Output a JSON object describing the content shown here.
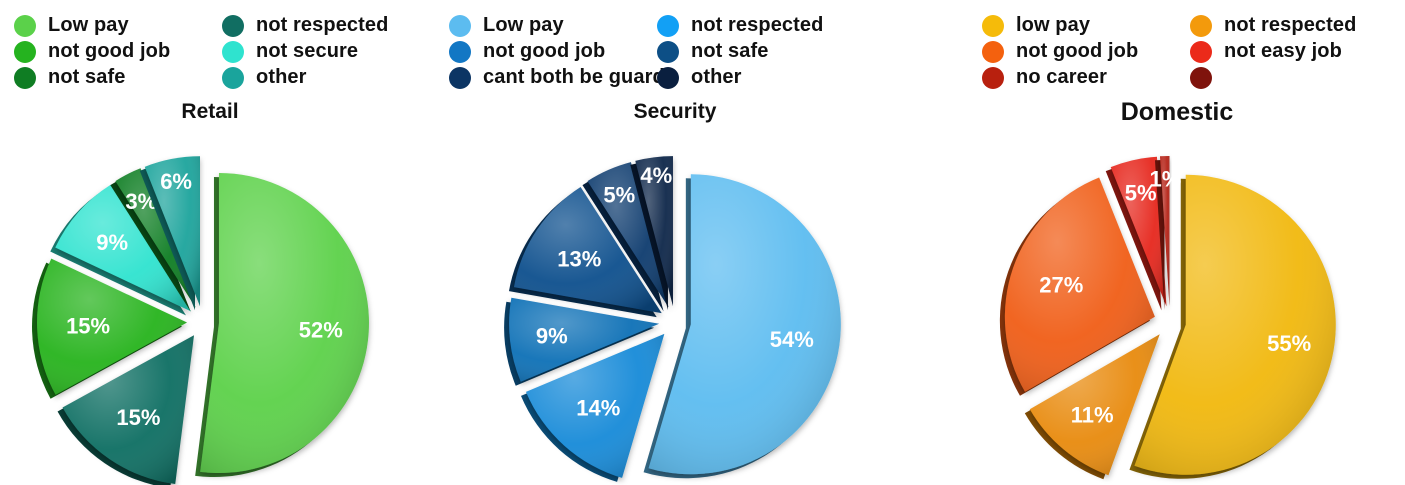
{
  "chart_data": [
    {
      "type": "pie",
      "title": "Retail",
      "slices": [
        {
          "label": "Low pay",
          "value": 52,
          "display": "52%",
          "color": "#5bd14a"
        },
        {
          "label": "not respected",
          "value": 15,
          "display": "15%",
          "color": "#116e62"
        },
        {
          "label": "not good job",
          "value": 15,
          "display": "15%",
          "color": "#25b31f"
        },
        {
          "label": "not secure",
          "value": 9,
          "display": "9%",
          "color": "#2fe3cf"
        },
        {
          "label": "not safe",
          "value": 3,
          "display": "3%",
          "color": "#0f7d23"
        },
        {
          "label": "other",
          "value": 6,
          "display": "6%",
          "color": "#1aa49c"
        }
      ]
    },
    {
      "type": "pie",
      "title": "Security",
      "slices": [
        {
          "label": "Low pay",
          "value": 54,
          "display": "54%",
          "color": "#5cbcf0"
        },
        {
          "label": "not respected",
          "value": 14,
          "display": "14%",
          "color": "#128ad8"
        },
        {
          "label": "not good job",
          "value": 9,
          "display": "9%",
          "color": "#0f70b6"
        },
        {
          "label": "not safe",
          "value": 13,
          "display": "13%",
          "color": "#0d508d"
        },
        {
          "label": "cant both be guards",
          "value": 5,
          "display": "5%",
          "color": "#0a3a6e"
        },
        {
          "label": "other",
          "value": 4,
          "display": "4%",
          "color": "#0a2549"
        }
      ]
    },
    {
      "type": "pie",
      "title": "Domestic",
      "slices": [
        {
          "label": "low pay",
          "value": 55,
          "display": "55%",
          "color": "#f1b80c"
        },
        {
          "label": "not respected",
          "value": 11,
          "display": "11%",
          "color": "#e88a08"
        },
        {
          "label": "not good job",
          "value": 27,
          "display": "27%",
          "color": "#f05d14"
        },
        {
          "label": "not easy job",
          "value": 5,
          "display": "5%",
          "color": "#e6281c"
        },
        {
          "label": "no career",
          "value": 1,
          "display": "1%",
          "color": "#b52012"
        },
        {
          "label": "",
          "value": 0,
          "display": "",
          "color": "#8a160e"
        }
      ]
    }
  ],
  "legends": [
    {
      "items": [
        {
          "label": "Low pay",
          "color": "#5bd14a"
        },
        {
          "label": "not respected",
          "color": "#116e62"
        },
        {
          "label": "not good job",
          "color": "#25b31f"
        },
        {
          "label": "not secure",
          "color": "#2fe3cf"
        },
        {
          "label": "not safe",
          "color": "#0f7d23"
        },
        {
          "label": "other",
          "color": "#1aa49c"
        }
      ]
    },
    {
      "items": [
        {
          "label": "Low pay",
          "color": "#5cbcf0"
        },
        {
          "label": "not respected",
          "color": "#12a0f5"
        },
        {
          "label": "not good job",
          "color": "#1277c4"
        },
        {
          "label": "not safe",
          "color": "#0d4f86"
        },
        {
          "label": "cant both be guards",
          "color": "#0c3564"
        },
        {
          "label": "other",
          "color": "#0a1f3f"
        }
      ]
    },
    {
      "items": [
        {
          "label": "low pay",
          "color": "#f5bb0a"
        },
        {
          "label": "not respected",
          "color": "#f39a0c"
        },
        {
          "label": "not good job",
          "color": "#f4610e"
        },
        {
          "label": "not easy job",
          "color": "#eb2a1a"
        },
        {
          "label": "no career",
          "color": "#b8200e"
        },
        {
          "label": "",
          "color": "#7f130c"
        }
      ]
    }
  ]
}
